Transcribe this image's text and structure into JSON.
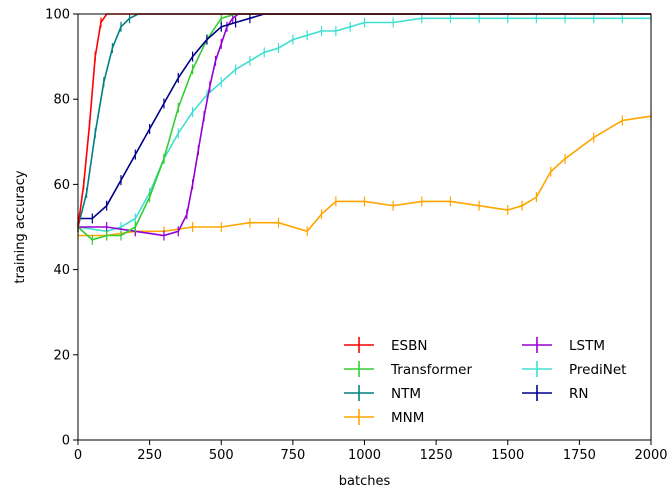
{
  "chart_data": {
    "type": "line",
    "xlabel": "batches",
    "ylabel": "training accuracy",
    "xlim": [
      0,
      2000
    ],
    "ylim": [
      0,
      100
    ],
    "xticks": [
      0,
      250,
      500,
      750,
      1000,
      1250,
      1500,
      1750,
      2000
    ],
    "yticks": [
      0,
      20,
      40,
      60,
      80,
      100
    ],
    "grid": false,
    "legend_position": "lower-right",
    "series": [
      {
        "name": "ESBN",
        "color": "#ff0000",
        "x": [
          0,
          20,
          40,
          60,
          80,
          100,
          120,
          140,
          160,
          200,
          2000
        ],
        "y": [
          50,
          60,
          74,
          90,
          98,
          100,
          100,
          100,
          100,
          100,
          100
        ]
      },
      {
        "name": "Transformer",
        "color": "#32cd32",
        "x": [
          0,
          50,
          100,
          150,
          200,
          250,
          300,
          350,
          400,
          450,
          500,
          550,
          600,
          2000
        ],
        "y": [
          50,
          47,
          48,
          48,
          50,
          57,
          66,
          78,
          87,
          94,
          99,
          100,
          100,
          100
        ]
      },
      {
        "name": "NTM",
        "color": "#008080",
        "x": [
          0,
          30,
          60,
          90,
          120,
          150,
          180,
          210,
          240,
          270,
          300,
          2000
        ],
        "y": [
          50,
          58,
          72,
          84,
          92,
          97,
          99,
          100,
          100,
          100,
          100,
          100
        ]
      },
      {
        "name": "MNM",
        "color": "#ffa500",
        "x": [
          0,
          100,
          200,
          300,
          400,
          500,
          600,
          700,
          800,
          850,
          900,
          1000,
          1100,
          1200,
          1300,
          1400,
          1500,
          1550,
          1600,
          1650,
          1700,
          1800,
          1900,
          2000
        ],
        "y": [
          48,
          48,
          49,
          49,
          50,
          50,
          51,
          51,
          49,
          53,
          56,
          56,
          55,
          56,
          56,
          55,
          54,
          55,
          57,
          63,
          66,
          71,
          75,
          76
        ]
      },
      {
        "name": "LSTM",
        "color": "#9400d3",
        "x": [
          0,
          100,
          200,
          300,
          350,
          380,
          400,
          420,
          440,
          460,
          480,
          500,
          520,
          540,
          560,
          600,
          2000
        ],
        "y": [
          50,
          50,
          49,
          48,
          49,
          53,
          60,
          68,
          76,
          83,
          89,
          93,
          97,
          99,
          100,
          100,
          100
        ]
      },
      {
        "name": "PrediNet",
        "color": "#40e0d0",
        "x": [
          0,
          100,
          150,
          200,
          250,
          300,
          350,
          400,
          450,
          500,
          550,
          600,
          650,
          700,
          750,
          800,
          850,
          900,
          950,
          1000,
          1100,
          1200,
          1300,
          1400,
          1500,
          1600,
          1700,
          1800,
          1900,
          2000
        ],
        "y": [
          50,
          49,
          50,
          52,
          58,
          66,
          72,
          77,
          81,
          84,
          87,
          89,
          91,
          92,
          94,
          95,
          96,
          96,
          97,
          98,
          98,
          99,
          99,
          99,
          99,
          99,
          99,
          99,
          99,
          99
        ]
      },
      {
        "name": "RN",
        "color": "#00008b",
        "x": [
          0,
          50,
          100,
          150,
          200,
          250,
          300,
          350,
          400,
          450,
          500,
          550,
          600,
          650,
          700,
          2000
        ],
        "y": [
          52,
          52,
          55,
          61,
          67,
          73,
          79,
          85,
          90,
          94,
          97,
          98,
          99,
          100,
          100,
          100
        ]
      }
    ]
  }
}
